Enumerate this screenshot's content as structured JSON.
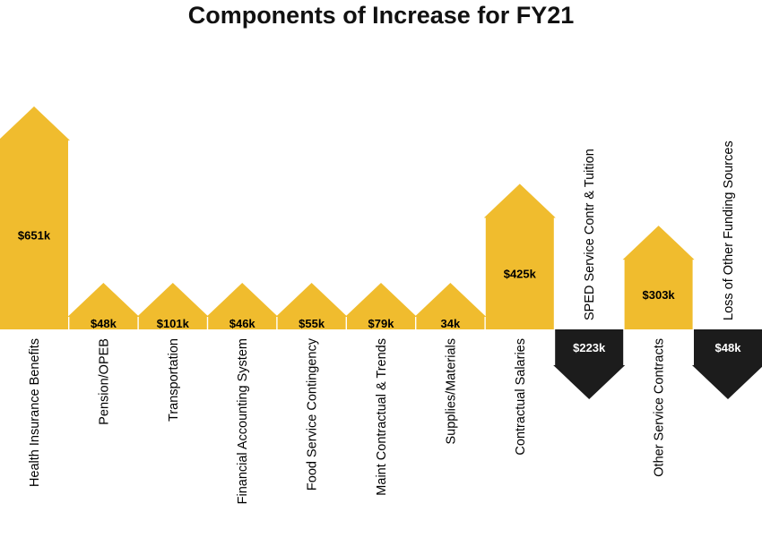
{
  "chart_data": {
    "type": "bar",
    "title": "Components of Increase for FY21",
    "unit": "$k",
    "colors": {
      "increase": "#F0BC2E",
      "decrease": "#1C1C1C",
      "increase_text": "#000000",
      "decrease_text": "#FFFFFF"
    },
    "items": [
      {
        "category": "Health Insurance Benefits",
        "value": 651,
        "label": "$651k"
      },
      {
        "category": "Pension/OPEB",
        "value": 48,
        "label": "$48k"
      },
      {
        "category": "Transportation",
        "value": 101,
        "label": "$101k"
      },
      {
        "category": "Financial Accounting System",
        "value": 46,
        "label": "$46k"
      },
      {
        "category": "Food Service Contingency",
        "value": 55,
        "label": "$55k"
      },
      {
        "category": "Maint Contractual & Trends",
        "value": 79,
        "label": "$79k"
      },
      {
        "category": "Supplies/Materials",
        "value": 34,
        "label": "34k"
      },
      {
        "category": "Contractual Salaries",
        "value": 425,
        "label": "$425k"
      },
      {
        "category": "SPED Service Contr & Tuition",
        "value": -223,
        "label": "$223k"
      },
      {
        "category": "Other Service Contracts",
        "value": 303,
        "label": "$303k"
      },
      {
        "category": "Loss of Other Funding Sources",
        "value": -48,
        "label": "$48k"
      }
    ]
  }
}
